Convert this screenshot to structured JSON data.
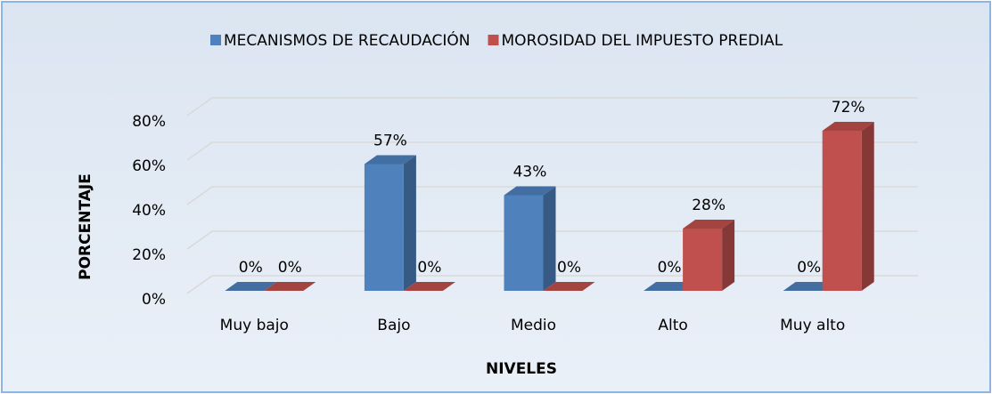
{
  "chart_data": {
    "type": "bar3d",
    "categories": [
      "Muy bajo",
      "Bajo",
      "Medio",
      "Alto",
      "Muy alto"
    ],
    "series": [
      {
        "name": "MECANISMOS DE RECAUDACIÓN",
        "color": "#4f81bd",
        "values": [
          0,
          57,
          43,
          0,
          0
        ],
        "value_labels": [
          "0%",
          "57%",
          "43%",
          "0%",
          "0%"
        ]
      },
      {
        "name": "MOROSIDAD DEL IMPUESTO PREDIAL",
        "color": "#c0504d",
        "values": [
          0,
          0,
          0,
          28,
          72
        ],
        "value_labels": [
          "0%",
          "0%",
          "0%",
          "28%",
          "72%"
        ]
      }
    ],
    "ylim": [
      0,
      80
    ],
    "yticks": [
      {
        "value": 0,
        "label": "0%"
      },
      {
        "value": 20,
        "label": "20%"
      },
      {
        "value": 40,
        "label": "40%"
      },
      {
        "value": 60,
        "label": "60%"
      },
      {
        "value": 80,
        "label": "80%"
      }
    ],
    "grid": true,
    "legend": "top",
    "y_label": "PORCENTAJE",
    "x_label": "NIVELES"
  }
}
